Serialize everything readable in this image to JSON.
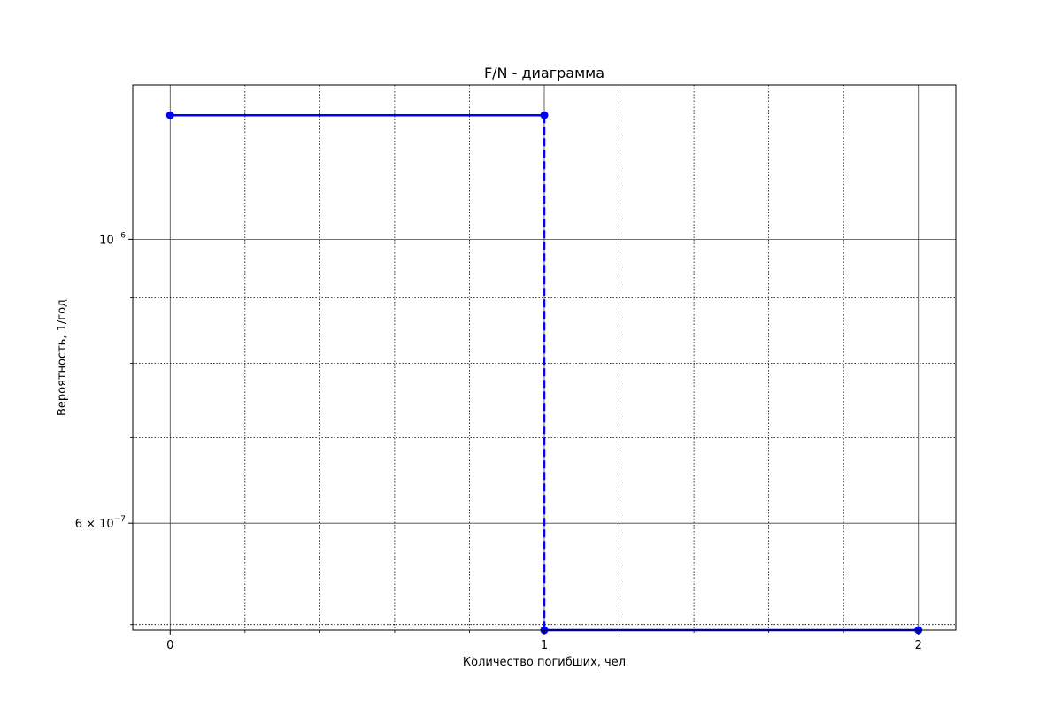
{
  "chart_data": {
    "type": "line",
    "title": "F/N - диаграмма",
    "xlabel": "Количество погибших, чел",
    "ylabel": "Вероятность, 1/год",
    "xlim": [
      -0.1,
      2.1
    ],
    "ylim": [
      4.95e-07,
      1.32e-06
    ],
    "yscale": "log",
    "grid": true,
    "x_ticks": [
      {
        "value": 0,
        "label": "0"
      },
      {
        "value": 1,
        "label": "1"
      },
      {
        "value": 2,
        "label": "2"
      }
    ],
    "x_minor_ticks": [
      0.2,
      0.4,
      0.6,
      0.8,
      1.2,
      1.4,
      1.6,
      1.8
    ],
    "y_major_ticks": [
      {
        "value": 1e-06,
        "base": "10",
        "exp": "−6"
      },
      {
        "value": 6e-07,
        "base": "6 × 10",
        "exp": "−7"
      }
    ],
    "y_minor_ticks": [
      5e-07,
      7e-07,
      8e-07,
      9e-07
    ],
    "series": [
      {
        "color": "#0000ff",
        "segments": [
          {
            "x": [
              0,
              1
            ],
            "y": [
              1.25e-06,
              1.25e-06
            ],
            "style": "solid"
          },
          {
            "x": [
              1,
              1
            ],
            "y": [
              1.25e-06,
              4.95e-07
            ],
            "style": "dashed"
          },
          {
            "x": [
              1,
              2
            ],
            "y": [
              4.95e-07,
              4.95e-07
            ],
            "style": "solid"
          }
        ],
        "points": [
          {
            "x": 0,
            "y": 1.25e-06
          },
          {
            "x": 1,
            "y": 1.25e-06
          },
          {
            "x": 1,
            "y": 4.95e-07
          },
          {
            "x": 2,
            "y": 4.95e-07
          }
        ]
      }
    ]
  }
}
